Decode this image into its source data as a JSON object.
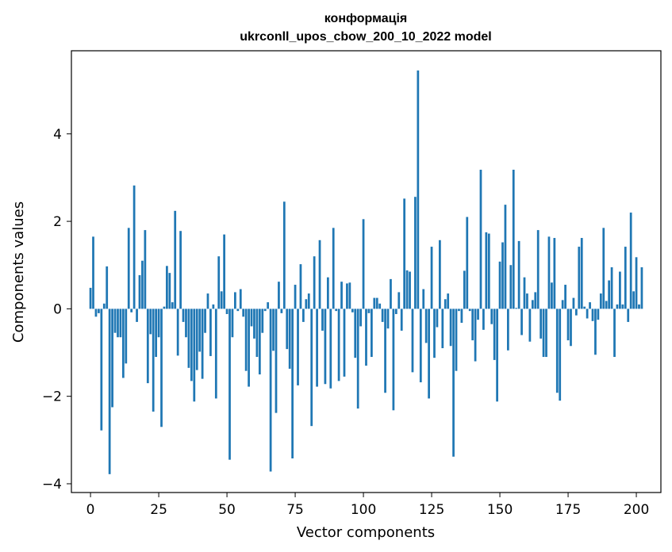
{
  "chart_data": {
    "type": "bar",
    "title_line1": "конформація",
    "title_line2": "ukrconll_upos_cbow_200_10_2022 model",
    "xlabel": "Vector components",
    "ylabel": "Components values",
    "xlim": [
      -7,
      209
    ],
    "ylim": [
      -4.2,
      5.9
    ],
    "x_ticks": [
      0,
      25,
      50,
      75,
      100,
      125,
      150,
      175,
      200
    ],
    "y_ticks": [
      -4,
      -2,
      0,
      2,
      4
    ],
    "y_tick_labels": [
      "−4",
      "−2",
      "0",
      "2",
      "4"
    ],
    "grid": false,
    "bar_color": "#1f77b4",
    "values": [
      0.48,
      1.65,
      -0.18,
      -0.1,
      -2.78,
      0.12,
      0.97,
      -3.78,
      -2.25,
      -0.55,
      -0.65,
      -0.65,
      -1.58,
      -1.25,
      1.85,
      -0.08,
      2.82,
      -0.3,
      0.77,
      1.1,
      1.8,
      -1.7,
      -0.58,
      -2.35,
      -1.1,
      -0.65,
      -2.7,
      0.05,
      0.98,
      0.82,
      0.15,
      2.24,
      -1.07,
      1.78,
      -0.3,
      -0.65,
      -1.35,
      -1.65,
      -2.12,
      -1.4,
      -0.98,
      -1.6,
      -0.55,
      0.35,
      -1.08,
      0.1,
      -2.05,
      1.2,
      0.4,
      1.7,
      -0.12,
      -3.45,
      -0.65,
      0.38,
      -0.05,
      0.45,
      -0.18,
      -1.42,
      -1.78,
      -0.4,
      -0.68,
      -1.1,
      -1.5,
      -0.55,
      -0.05,
      0.15,
      -3.72,
      -0.96,
      -2.38,
      0.62,
      -0.1,
      2.45,
      -0.92,
      -1.37,
      -3.42,
      0.55,
      -1.75,
      1.02,
      -0.3,
      0.22,
      0.35,
      -2.68,
      1.2,
      -1.78,
      1.57,
      -0.5,
      -1.72,
      0.72,
      -1.82,
      1.85,
      -0.05,
      -1.65,
      0.62,
      -1.55,
      0.58,
      0.6,
      -0.08,
      -1.12,
      -2.28,
      -0.4,
      2.05,
      -1.3,
      -0.1,
      -1.1,
      0.25,
      0.25,
      0.12,
      -0.3,
      -1.92,
      -0.45,
      0.68,
      -2.32,
      -0.12,
      0.38,
      -0.5,
      2.52,
      0.88,
      0.85,
      -1.45,
      2.56,
      5.45,
      -1.68,
      0.45,
      -0.78,
      -2.05,
      1.42,
      -1.12,
      -0.42,
      1.57,
      -0.9,
      0.22,
      0.35,
      -0.85,
      -3.38,
      -1.42,
      -0.05,
      -0.32,
      0.87,
      2.1,
      -0.05,
      -0.72,
      -1.2,
      -0.25,
      3.18,
      -0.48,
      1.75,
      1.72,
      -0.35,
      -1.17,
      -2.12,
      1.08,
      1.52,
      2.38,
      -0.95,
      1.0,
      3.18,
      0.02,
      1.55,
      -0.6,
      0.72,
      0.35,
      -0.75,
      0.2,
      0.38,
      1.8,
      -0.68,
      -1.1,
      -1.1,
      1.65,
      0.6,
      1.62,
      -1.92,
      -2.1,
      0.2,
      0.55,
      -0.72,
      -0.85,
      0.25,
      -0.15,
      1.42,
      1.62,
      0.05,
      -0.22,
      0.15,
      -0.28,
      -1.05,
      -0.25,
      0.35,
      1.85,
      0.18,
      0.65,
      0.95,
      -1.1,
      0.1,
      0.85,
      0.1,
      1.42,
      -0.3,
      2.2,
      0.4,
      1.18,
      0.1,
      0.95
    ]
  }
}
